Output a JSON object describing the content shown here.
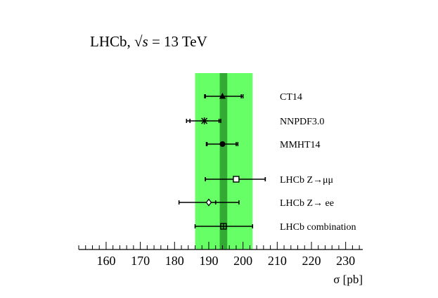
{
  "title": {
    "prefix": "LHCb, ",
    "sqrt": "√",
    "var": "s",
    "suffix": " = 13 TeV"
  },
  "chart_data": {
    "type": "scatter",
    "orientation": "horizontal-error-bars",
    "xlabel": "σ [pb]",
    "xlim": [
      152,
      235
    ],
    "xticks": [
      160,
      170,
      180,
      190,
      200,
      210,
      220,
      230
    ],
    "grid": false,
    "band": {
      "center": 194.3,
      "inner": [
        193.2,
        195.4
      ],
      "outer": [
        186.0,
        202.8
      ],
      "inner_color": "#33aa33",
      "outer_color": "#66ff66"
    },
    "series": [
      {
        "name": "CT14",
        "value": 194.0,
        "err_inner": [
          189.0,
          199.5
        ],
        "err_outer": [
          188.8,
          200.0
        ],
        "marker": "triangle-filled"
      },
      {
        "name": "NNPDF3.0",
        "value": 188.7,
        "err_inner": [
          184.5,
          193.0
        ],
        "err_outer": [
          183.5,
          193.5
        ],
        "marker": "star"
      },
      {
        "name": "MMHT14",
        "value": 194.0,
        "err_inner": [
          189.5,
          198.0
        ],
        "err_outer": [
          189.3,
          198.5
        ],
        "marker": "circle-filled"
      },
      {
        "name": "LHCb Z→μμ",
        "value": 198.0,
        "err_inner": [
          189.0,
          206.5
        ],
        "err_outer": [
          189.0,
          206.5
        ],
        "marker": "square-open"
      },
      {
        "name": "LHCb Z→ ee",
        "value": 190.0,
        "err_inner": [
          192.0,
          192.0
        ],
        "err_outer": [
          181.3,
          198.8
        ],
        "marker": "diamond-open"
      },
      {
        "name": "LHCb combination",
        "value": 194.3,
        "err_inner": [
          194.3,
          194.3
        ],
        "err_outer": [
          186.0,
          202.8
        ],
        "marker": "square-open-cross"
      }
    ]
  }
}
